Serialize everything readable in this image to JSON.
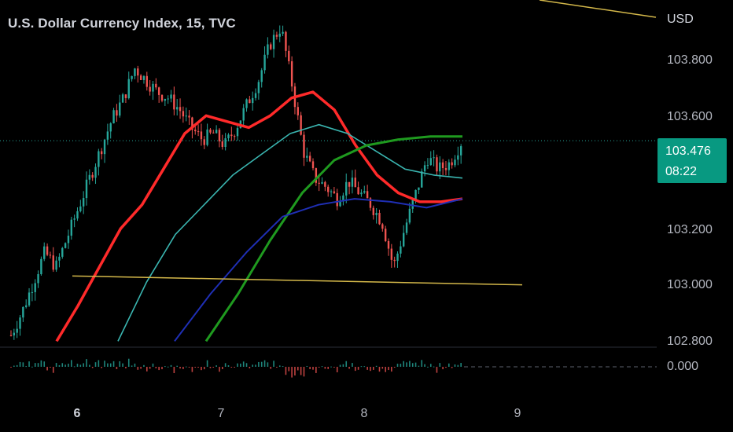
{
  "header": {
    "title": "U.S. Dollar Currency Index, 15, TVC"
  },
  "price_scale": {
    "currency": "USD",
    "ticks": [
      "103.800",
      "103.600",
      "103.200",
      "103.000",
      "102.800"
    ],
    "oscillator_tick": "0.000",
    "last_price": "103.476",
    "countdown": "08:22",
    "badge_color": "#089981"
  },
  "time_axis": {
    "labels": [
      {
        "text": "6",
        "bold": true
      },
      {
        "text": "7",
        "bold": false
      },
      {
        "text": "8",
        "bold": false
      },
      {
        "text": "9",
        "bold": false
      }
    ]
  },
  "colors": {
    "background": "#000000",
    "up": "#26a69a",
    "down": "#ef5350",
    "trendline": "#d4b84a",
    "ma_fast": "#ff2a2a",
    "ma_orange": "#e8823a",
    "ma_thin_red": "#d9302a",
    "ma_teal": "#3ab5b0",
    "ma_green": "#1f9a1f",
    "ma_blue": "#1f2fb5"
  },
  "chart_data": {
    "type": "candlestick",
    "title": "U.S. Dollar Currency Index, 15, TVC",
    "y_axis": {
      "unit": "USD",
      "ylim": [
        102.78,
        103.95
      ]
    },
    "x_axis": {
      "labels": [
        "6",
        "7",
        "8",
        "9"
      ]
    },
    "last_price": 103.476,
    "series": [
      {
        "name": "price",
        "kind": "close",
        "values": [
          102.82,
          102.9,
          103.0,
          103.1,
          103.05,
          103.15,
          103.25,
          103.35,
          103.45,
          103.55,
          103.62,
          103.72,
          103.68,
          103.64,
          103.62,
          103.58,
          103.52,
          103.48,
          103.5,
          103.46,
          103.52,
          103.6,
          103.68,
          103.8,
          103.86,
          103.66,
          103.44,
          103.35,
          103.32,
          103.28,
          103.34,
          103.3,
          103.26,
          103.2,
          103.05,
          103.18,
          103.3,
          103.42,
          103.38,
          103.4,
          103.47
        ]
      },
      {
        "name": "ma_fast_red",
        "kind": "moving_average",
        "values": [
          102.8,
          102.92,
          103.05,
          103.18,
          103.26,
          103.38,
          103.5,
          103.56,
          103.54,
          103.52,
          103.56,
          103.62,
          103.64,
          103.58,
          103.46,
          103.36,
          103.3,
          103.27,
          103.27,
          103.28
        ]
      },
      {
        "name": "ma_teal",
        "kind": "moving_average",
        "values": [
          102.8,
          103.0,
          103.16,
          103.26,
          103.36,
          103.43,
          103.5,
          103.53,
          103.5,
          103.44,
          103.38,
          103.36,
          103.35
        ]
      },
      {
        "name": "ma_green",
        "kind": "moving_average",
        "values": [
          102.8,
          102.96,
          103.14,
          103.3,
          103.41,
          103.46,
          103.48,
          103.49,
          103.49
        ]
      },
      {
        "name": "ma_blue",
        "kind": "moving_average",
        "values": [
          102.8,
          102.96,
          103.1,
          103.22,
          103.26,
          103.28,
          103.27,
          103.25,
          103.28
        ]
      }
    ],
    "trendlines": [
      {
        "from": 103.02,
        "to": 102.99
      },
      {
        "from": 104.3,
        "to": 104.25
      }
    ],
    "oscillator": {
      "zero_label": "0.000"
    }
  }
}
